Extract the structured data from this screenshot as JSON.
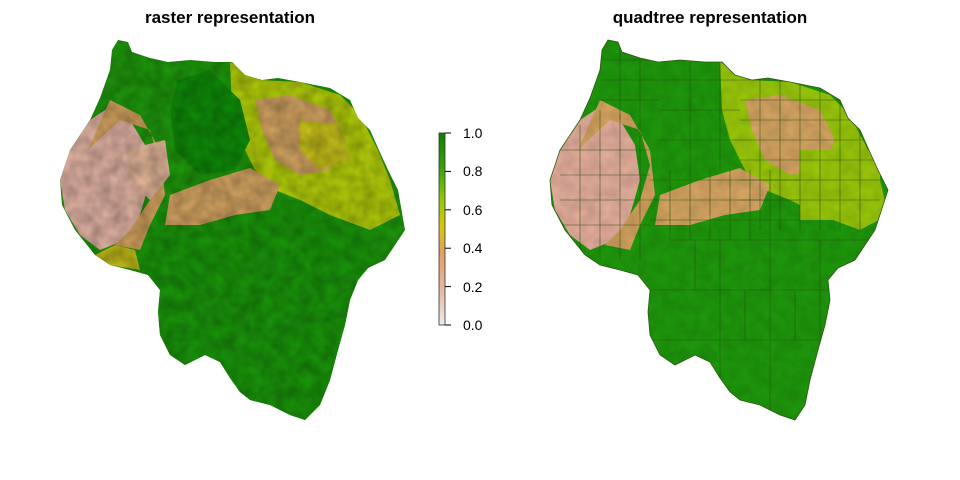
{
  "chart_data": [
    {
      "type": "heatmap",
      "title": "raster representation",
      "legend": {
        "position": "right",
        "ticks": [
          "0.0",
          "0.2",
          "0.4",
          "0.6",
          "0.8",
          "1.0"
        ],
        "range": [
          0.0,
          1.0
        ],
        "colors": [
          "#ececec",
          "#e6b8a6",
          "#e0a060",
          "#d4c80a",
          "#8ec80a",
          "#3aa00a",
          "#0a8000"
        ]
      }
    },
    {
      "type": "heatmap",
      "title": "quadtree representation"
    }
  ]
}
